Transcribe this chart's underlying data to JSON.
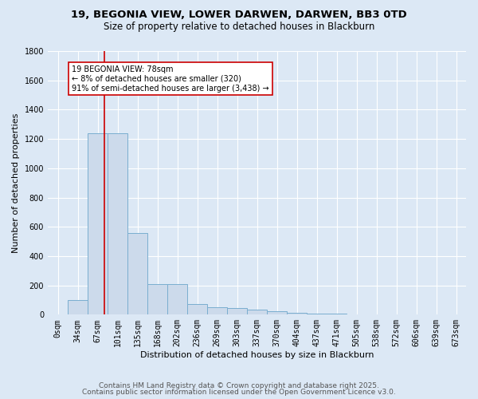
{
  "title1": "19, BEGONIA VIEW, LOWER DARWEN, DARWEN, BB3 0TD",
  "title2": "Size of property relative to detached houses in Blackburn",
  "xlabel": "Distribution of detached houses by size in Blackburn",
  "ylabel": "Number of detached properties",
  "bar_labels": [
    "0sqm",
    "34sqm",
    "67sqm",
    "101sqm",
    "135sqm",
    "168sqm",
    "202sqm",
    "236sqm",
    "269sqm",
    "303sqm",
    "337sqm",
    "370sqm",
    "404sqm",
    "437sqm",
    "471sqm",
    "505sqm",
    "538sqm",
    "572sqm",
    "606sqm",
    "639sqm",
    "673sqm"
  ],
  "bar_values": [
    0,
    100,
    1240,
    1240,
    560,
    210,
    210,
    70,
    50,
    45,
    35,
    25,
    10,
    5,
    5,
    3,
    2,
    1,
    1,
    1,
    0
  ],
  "bar_color": "#ccdaeb",
  "bar_edge_color": "#7aaed0",
  "bar_linewidth": 0.7,
  "vline_x": 2.33,
  "vline_color": "#cc0000",
  "vline_linewidth": 1.2,
  "annotation_text": "19 BEGONIA VIEW: 78sqm\n← 8% of detached houses are smaller (320)\n91% of semi-detached houses are larger (3,438) →",
  "annotation_box_color": "#ffffff",
  "annotation_box_edge": "#cc0000",
  "ylim": [
    0,
    1800
  ],
  "yticks": [
    0,
    200,
    400,
    600,
    800,
    1000,
    1200,
    1400,
    1600,
    1800
  ],
  "background_color": "#dce8f5",
  "plot_bg_color": "#dce8f5",
  "grid_color": "#ffffff",
  "footnote1": "Contains HM Land Registry data © Crown copyright and database right 2025.",
  "footnote2": "Contains public sector information licensed under the Open Government Licence v3.0.",
  "title_fontsize": 9.5,
  "subtitle_fontsize": 8.5,
  "axis_label_fontsize": 8,
  "tick_fontsize": 7,
  "annot_fontsize": 7,
  "footnote_fontsize": 6.5
}
